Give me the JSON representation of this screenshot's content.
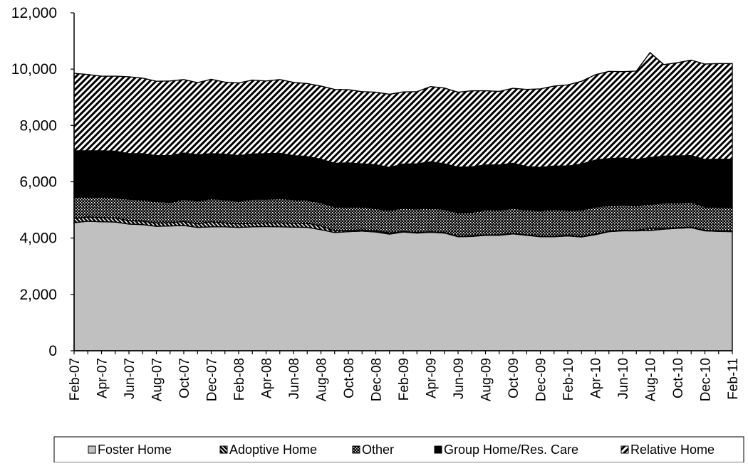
{
  "chart_data": {
    "type": "area",
    "stacked": true,
    "title": "",
    "xlabel": "",
    "ylabel": "",
    "ylim": [
      0,
      12000
    ],
    "yticks": [
      "0",
      "2,000",
      "4,000",
      "6,000",
      "8,000",
      "10,000",
      "12,000"
    ],
    "ytick_values": [
      0,
      2000,
      4000,
      6000,
      8000,
      10000,
      12000
    ],
    "grid": false,
    "legend_position": "bottom",
    "x_tick_labels": [
      "Feb-07",
      "Apr-07",
      "Jun-07",
      "Aug-07",
      "Oct-07",
      "Dec-07",
      "Feb-08",
      "Apr-08",
      "Jun-08",
      "Aug-08",
      "Oct-08",
      "Dec-08",
      "Feb-09",
      "Apr-09",
      "Jun-09",
      "Aug-09",
      "Oct-09",
      "Dec-09",
      "Feb-10",
      "Apr-10",
      "Jun-10",
      "Aug-10",
      "Oct-10",
      "Dec-10",
      "Feb-11"
    ],
    "x": [
      "Feb-07",
      "Mar-07",
      "Apr-07",
      "May-07",
      "Jun-07",
      "Jul-07",
      "Aug-07",
      "Sep-07",
      "Oct-07",
      "Nov-07",
      "Dec-07",
      "Jan-08",
      "Feb-08",
      "Mar-08",
      "Apr-08",
      "May-08",
      "Jun-08",
      "Jul-08",
      "Aug-08",
      "Sep-08",
      "Oct-08",
      "Nov-08",
      "Dec-08",
      "Jan-09",
      "Feb-09",
      "Mar-09",
      "Apr-09",
      "May-09",
      "Jun-09",
      "Jul-09",
      "Aug-09",
      "Sep-09",
      "Oct-09",
      "Nov-09",
      "Dec-09",
      "Jan-10",
      "Feb-10",
      "Mar-10",
      "Apr-10",
      "May-10",
      "Jun-10",
      "Jul-10",
      "Aug-10",
      "Sep-10",
      "Oct-10",
      "Nov-10",
      "Dec-10",
      "Jan-11",
      "Feb-11"
    ],
    "series": [
      {
        "name": "Foster Home",
        "color": "#c0c0c0",
        "pattern": "solid",
        "values": [
          4550,
          4600,
          4580,
          4570,
          4500,
          4480,
          4420,
          4430,
          4450,
          4380,
          4400,
          4400,
          4380,
          4400,
          4410,
          4400,
          4390,
          4380,
          4300,
          4200,
          4230,
          4250,
          4220,
          4140,
          4220,
          4180,
          4210,
          4180,
          4050,
          4060,
          4100,
          4100,
          4150,
          4100,
          4050,
          4050,
          4080,
          4040,
          4120,
          4230,
          4260,
          4260,
          4270,
          4320,
          4350,
          4370,
          4260,
          4240,
          4230
        ]
      },
      {
        "name": "Adoptive Home",
        "color": "#000000",
        "pattern": "diag-dense",
        "values": [
          150,
          150,
          150,
          150,
          120,
          120,
          120,
          120,
          140,
          130,
          180,
          140,
          130,
          130,
          130,
          140,
          140,
          150,
          130,
          60,
          40,
          40,
          40,
          40,
          20,
          20,
          20,
          20,
          20,
          20,
          20,
          20,
          20,
          20,
          20,
          20,
          20,
          20,
          20,
          20,
          20,
          20,
          80,
          20,
          20,
          20,
          20,
          20,
          20
        ]
      },
      {
        "name": "Other",
        "color": "#000000",
        "pattern": "dots",
        "values": [
          750,
          720,
          720,
          720,
          760,
          760,
          760,
          720,
          790,
          810,
          820,
          820,
          800,
          850,
          840,
          860,
          840,
          810,
          830,
          850,
          840,
          820,
          790,
          800,
          830,
          830,
          830,
          820,
          830,
          830,
          880,
          880,
          880,
          880,
          900,
          950,
          880,
          930,
          970,
          900,
          900,
          880,
          860,
          900,
          880,
          890,
          830,
          830,
          840
        ]
      },
      {
        "name": "Group Home/Res. Care",
        "color": "#000000",
        "pattern": "solid",
        "values": [
          1650,
          1630,
          1650,
          1650,
          1620,
          1640,
          1630,
          1660,
          1640,
          1640,
          1600,
          1620,
          1620,
          1610,
          1620,
          1610,
          1560,
          1560,
          1540,
          1550,
          1560,
          1530,
          1560,
          1530,
          1560,
          1610,
          1650,
          1620,
          1620,
          1620,
          1600,
          1600,
          1610,
          1540,
          1540,
          1540,
          1580,
          1640,
          1660,
          1670,
          1670,
          1630,
          1650,
          1670,
          1670,
          1650,
          1680,
          1710,
          1710
        ]
      },
      {
        "name": "Relative Home",
        "color": "#000000",
        "pattern": "diag",
        "values": [
          2750,
          2710,
          2650,
          2660,
          2730,
          2680,
          2640,
          2650,
          2610,
          2560,
          2640,
          2560,
          2580,
          2620,
          2580,
          2620,
          2600,
          2590,
          2600,
          2620,
          2600,
          2560,
          2570,
          2600,
          2560,
          2560,
          2670,
          2690,
          2660,
          2700,
          2630,
          2610,
          2660,
          2740,
          2790,
          2840,
          2880,
          2940,
          3030,
          3100,
          3060,
          3140,
          3730,
          3250,
          3310,
          3390,
          3390,
          3400,
          3400
        ]
      }
    ]
  }
}
